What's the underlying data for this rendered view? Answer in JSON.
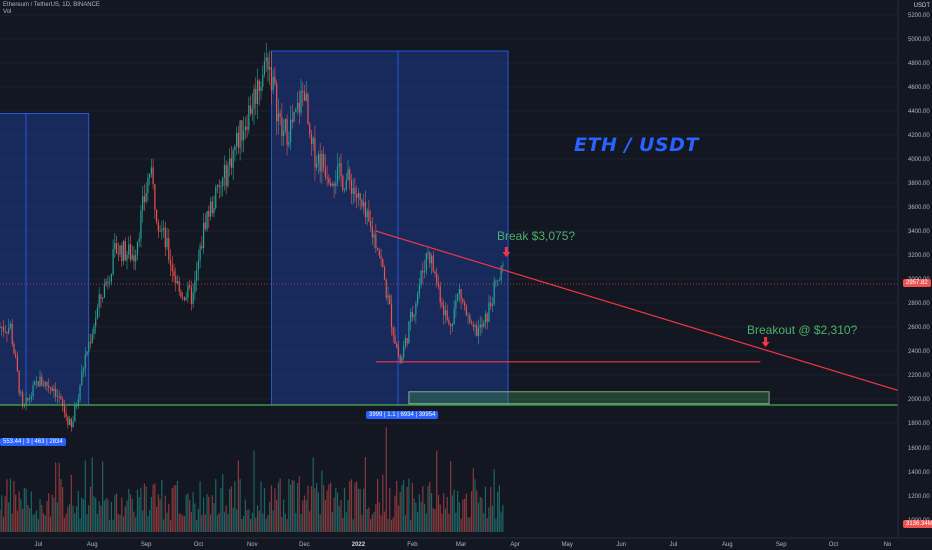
{
  "header": {
    "symbol_line": "Ethereum / TetherUS, 1D, BINANCE",
    "volume_label": "Vol",
    "currency": "USDT"
  },
  "annotations": {
    "title": "ETH / USDT",
    "break_label": "Break $3,075?",
    "breakout_label": "Breakout @ $2,310?",
    "range_tag": "3999 | 1.1 | 6934 | 39954",
    "left_range_tag": "553.44 | 3 | 463 | 2834",
    "current_price_tag": "2957.82",
    "volume_tag": "3136.34M"
  },
  "colors": {
    "background": "#131722",
    "up": "#26a69a",
    "down": "#ef5350",
    "range_box": "#1e3a8a",
    "trendline": "#f23645",
    "support": "#4caf50",
    "title": "#2962ff",
    "annotation_text": "#4caf6c"
  },
  "chart_data": {
    "type": "candlestick",
    "y_axis_ticks": [
      5200,
      5000,
      4800,
      4600,
      4400,
      4200,
      4000,
      3800,
      3600,
      3400,
      3200,
      3000,
      2800,
      2600,
      2400,
      2200,
      2000,
      1800
    ],
    "x_axis_ticks": [
      "Jul",
      "Aug",
      "Sep",
      "Oct",
      "Nov",
      "Dec",
      "2022",
      "Feb",
      "Mar",
      "Apr",
      "May",
      "Jun",
      "Jul",
      "Aug",
      "Sep",
      "Oct",
      "No"
    ],
    "ylim": [
      1700,
      5200
    ],
    "current_price": 2957.82,
    "volume_axis_ticks": [
      1600,
      1400,
      1200,
      1000
    ],
    "price_path": [
      [
        "2021-06-15",
        2600
      ],
      [
        "2021-06-22",
        1900
      ],
      [
        "2021-07-01",
        2150
      ],
      [
        "2021-07-10",
        2100
      ],
      [
        "2021-07-20",
        1750
      ],
      [
        "2021-07-28",
        2350
      ],
      [
        "2021-08-05",
        2800
      ],
      [
        "2021-08-15",
        3250
      ],
      [
        "2021-08-25",
        3200
      ],
      [
        "2021-09-03",
        3900
      ],
      [
        "2021-09-08",
        3500
      ],
      [
        "2021-09-20",
        2900
      ],
      [
        "2021-09-28",
        2850
      ],
      [
        "2021-10-05",
        3500
      ],
      [
        "2021-10-15",
        3800
      ],
      [
        "2021-10-22",
        4100
      ],
      [
        "2021-10-30",
        4400
      ],
      [
        "2021-11-10",
        4850
      ],
      [
        "2021-11-18",
        4200
      ],
      [
        "2021-11-25",
        4300
      ],
      [
        "2021-12-01",
        4600
      ],
      [
        "2021-12-04",
        4100
      ],
      [
        "2021-12-15",
        3900
      ],
      [
        "2021-12-28",
        3800
      ],
      [
        "2022-01-05",
        3500
      ],
      [
        "2022-01-12",
        3300
      ],
      [
        "2022-01-22",
        2500
      ],
      [
        "2022-01-25",
        2300
      ],
      [
        "2022-02-10",
        3250
      ],
      [
        "2022-02-22",
        2600
      ],
      [
        "2022-02-28",
        2900
      ],
      [
        "2022-03-07",
        2550
      ],
      [
        "2022-03-14",
        2600
      ],
      [
        "2022-03-20",
        2900
      ],
      [
        "2022-03-26",
        3100
      ]
    ],
    "volume_series": "daily volume bars (red and green), scale 0 to 1700",
    "drawings": {
      "descending_trendline": [
        [
          "2022-01-11",
          3400
        ],
        [
          "2022-11-30",
          1970
        ]
      ],
      "support_line": [
        [
          "2022-01-11",
          2310
        ],
        [
          "2022-08-20",
          2310
        ]
      ],
      "horizontal_ray": 1950,
      "green_box": {
        "from": "2022-01-30",
        "to": "2022-08-25",
        "top": 2060,
        "bottom": 1960
      },
      "blue_boxes": [
        {
          "from": "2021-05-15",
          "to": "2021-07-30",
          "top": 4380,
          "bottom": 1950
        },
        {
          "from": "2021-11-12",
          "to": "2022-03-28",
          "top": 4900,
          "bottom": 1950
        }
      ],
      "arrows": [
        [
          "2022-03-27",
          3200
        ],
        [
          "2022-08-23",
          2450
        ]
      ]
    }
  }
}
